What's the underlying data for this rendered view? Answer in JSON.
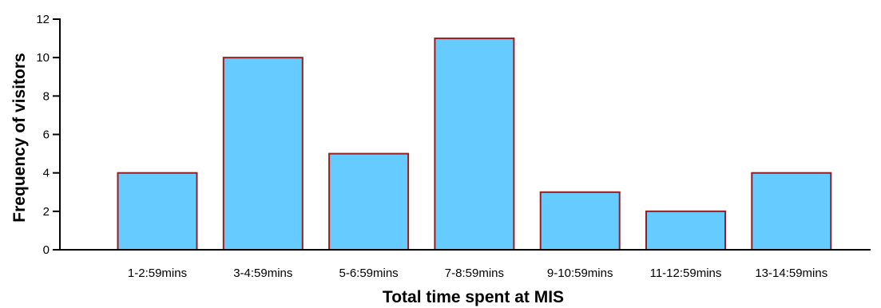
{
  "chart_data": {
    "type": "bar",
    "title": "",
    "xlabel": "Total time spent at MIS",
    "ylabel": "Frequency of visitors",
    "categories": [
      "1-2:59mins",
      "3-4:59mins",
      "5-6:59mins",
      "7-8:59mins",
      "9-10:59mins",
      "11-12:59mins",
      "13-14:59mins"
    ],
    "values": [
      4,
      10,
      5,
      11,
      3,
      2,
      4
    ],
    "ylim": [
      0,
      12
    ],
    "yticks": [
      "0",
      "2",
      "4",
      "6",
      "8",
      "10",
      "12"
    ],
    "grid": false,
    "legend": "none",
    "colors": {
      "bar_fill": "#66ccff",
      "bar_stroke": "#9b1c1c",
      "axis": "#000000"
    }
  }
}
